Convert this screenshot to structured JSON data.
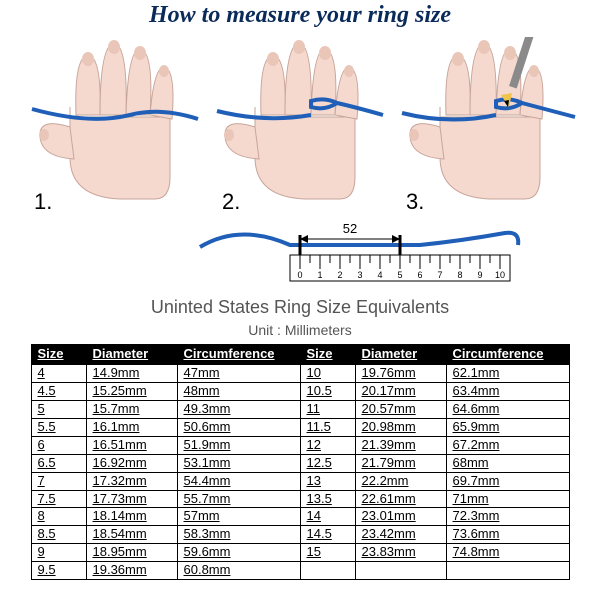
{
  "title": "How to measure your ring size",
  "colors": {
    "title": "#0a2a5a",
    "string": "#1f5fb8",
    "skin": "#f5d9cf",
    "skinStroke": "#c7a59a",
    "nail": "#e9c6b8",
    "pencilBody": "#8a8a8a",
    "pencilTip": "#f0c34a",
    "tableHeaderBg": "#000000",
    "tableHeaderText": "#ffffff",
    "rulerFill": "#ffffff",
    "rulerStroke": "#000000"
  },
  "steps": [
    "1.",
    "2.",
    "3."
  ],
  "ruler": {
    "measurement": "52",
    "ticks": [
      "0",
      "1",
      "2",
      "3",
      "4",
      "5",
      "6",
      "7",
      "8",
      "9",
      "10"
    ]
  },
  "subheader": "Uninted States Ring Size Equivalents",
  "unitLine": "Unit : Millimeters",
  "table": {
    "headers": [
      "Size",
      "Diameter",
      "Circumference",
      "Size",
      "Diameter",
      "Circumference"
    ],
    "rows": [
      [
        "4",
        "14.9mm",
        "47mm",
        "10",
        "19.76mm",
        "62.1mm"
      ],
      [
        "4.5",
        "15.25mm",
        "48mm",
        "10.5",
        "20.17mm",
        "63.4mm"
      ],
      [
        "5",
        "15.7mm",
        "49.3mm",
        "11",
        "20.57mm",
        "64.6mm"
      ],
      [
        "5.5",
        "16.1mm",
        "50.6mm",
        "11.5",
        "20.98mm",
        "65.9mm"
      ],
      [
        "6",
        "16.51mm",
        "51.9mm",
        "12",
        "21.39mm",
        "67.2mm"
      ],
      [
        "6.5",
        "16.92mm",
        "53.1mm",
        "12.5",
        "21.79mm",
        "68mm"
      ],
      [
        "7",
        "17.32mm",
        "54.4mm",
        "13",
        "22.2mm",
        "69.7mm"
      ],
      [
        "7.5",
        "17.73mm",
        "55.7mm",
        "13.5",
        "22.61mm",
        "71mm"
      ],
      [
        "8",
        "18.14mm",
        "57mm",
        "14",
        "23.01mm",
        "72.3mm"
      ],
      [
        "8.5",
        "18.54mm",
        "58.3mm",
        "14.5",
        "23.42mm",
        "73.6mm"
      ],
      [
        "9",
        "18.95mm",
        "59.6mm",
        "15",
        "23.83mm",
        "74.8mm"
      ],
      [
        "9.5",
        "19.36mm",
        "60.8mm",
        "",
        "",
        ""
      ]
    ]
  }
}
